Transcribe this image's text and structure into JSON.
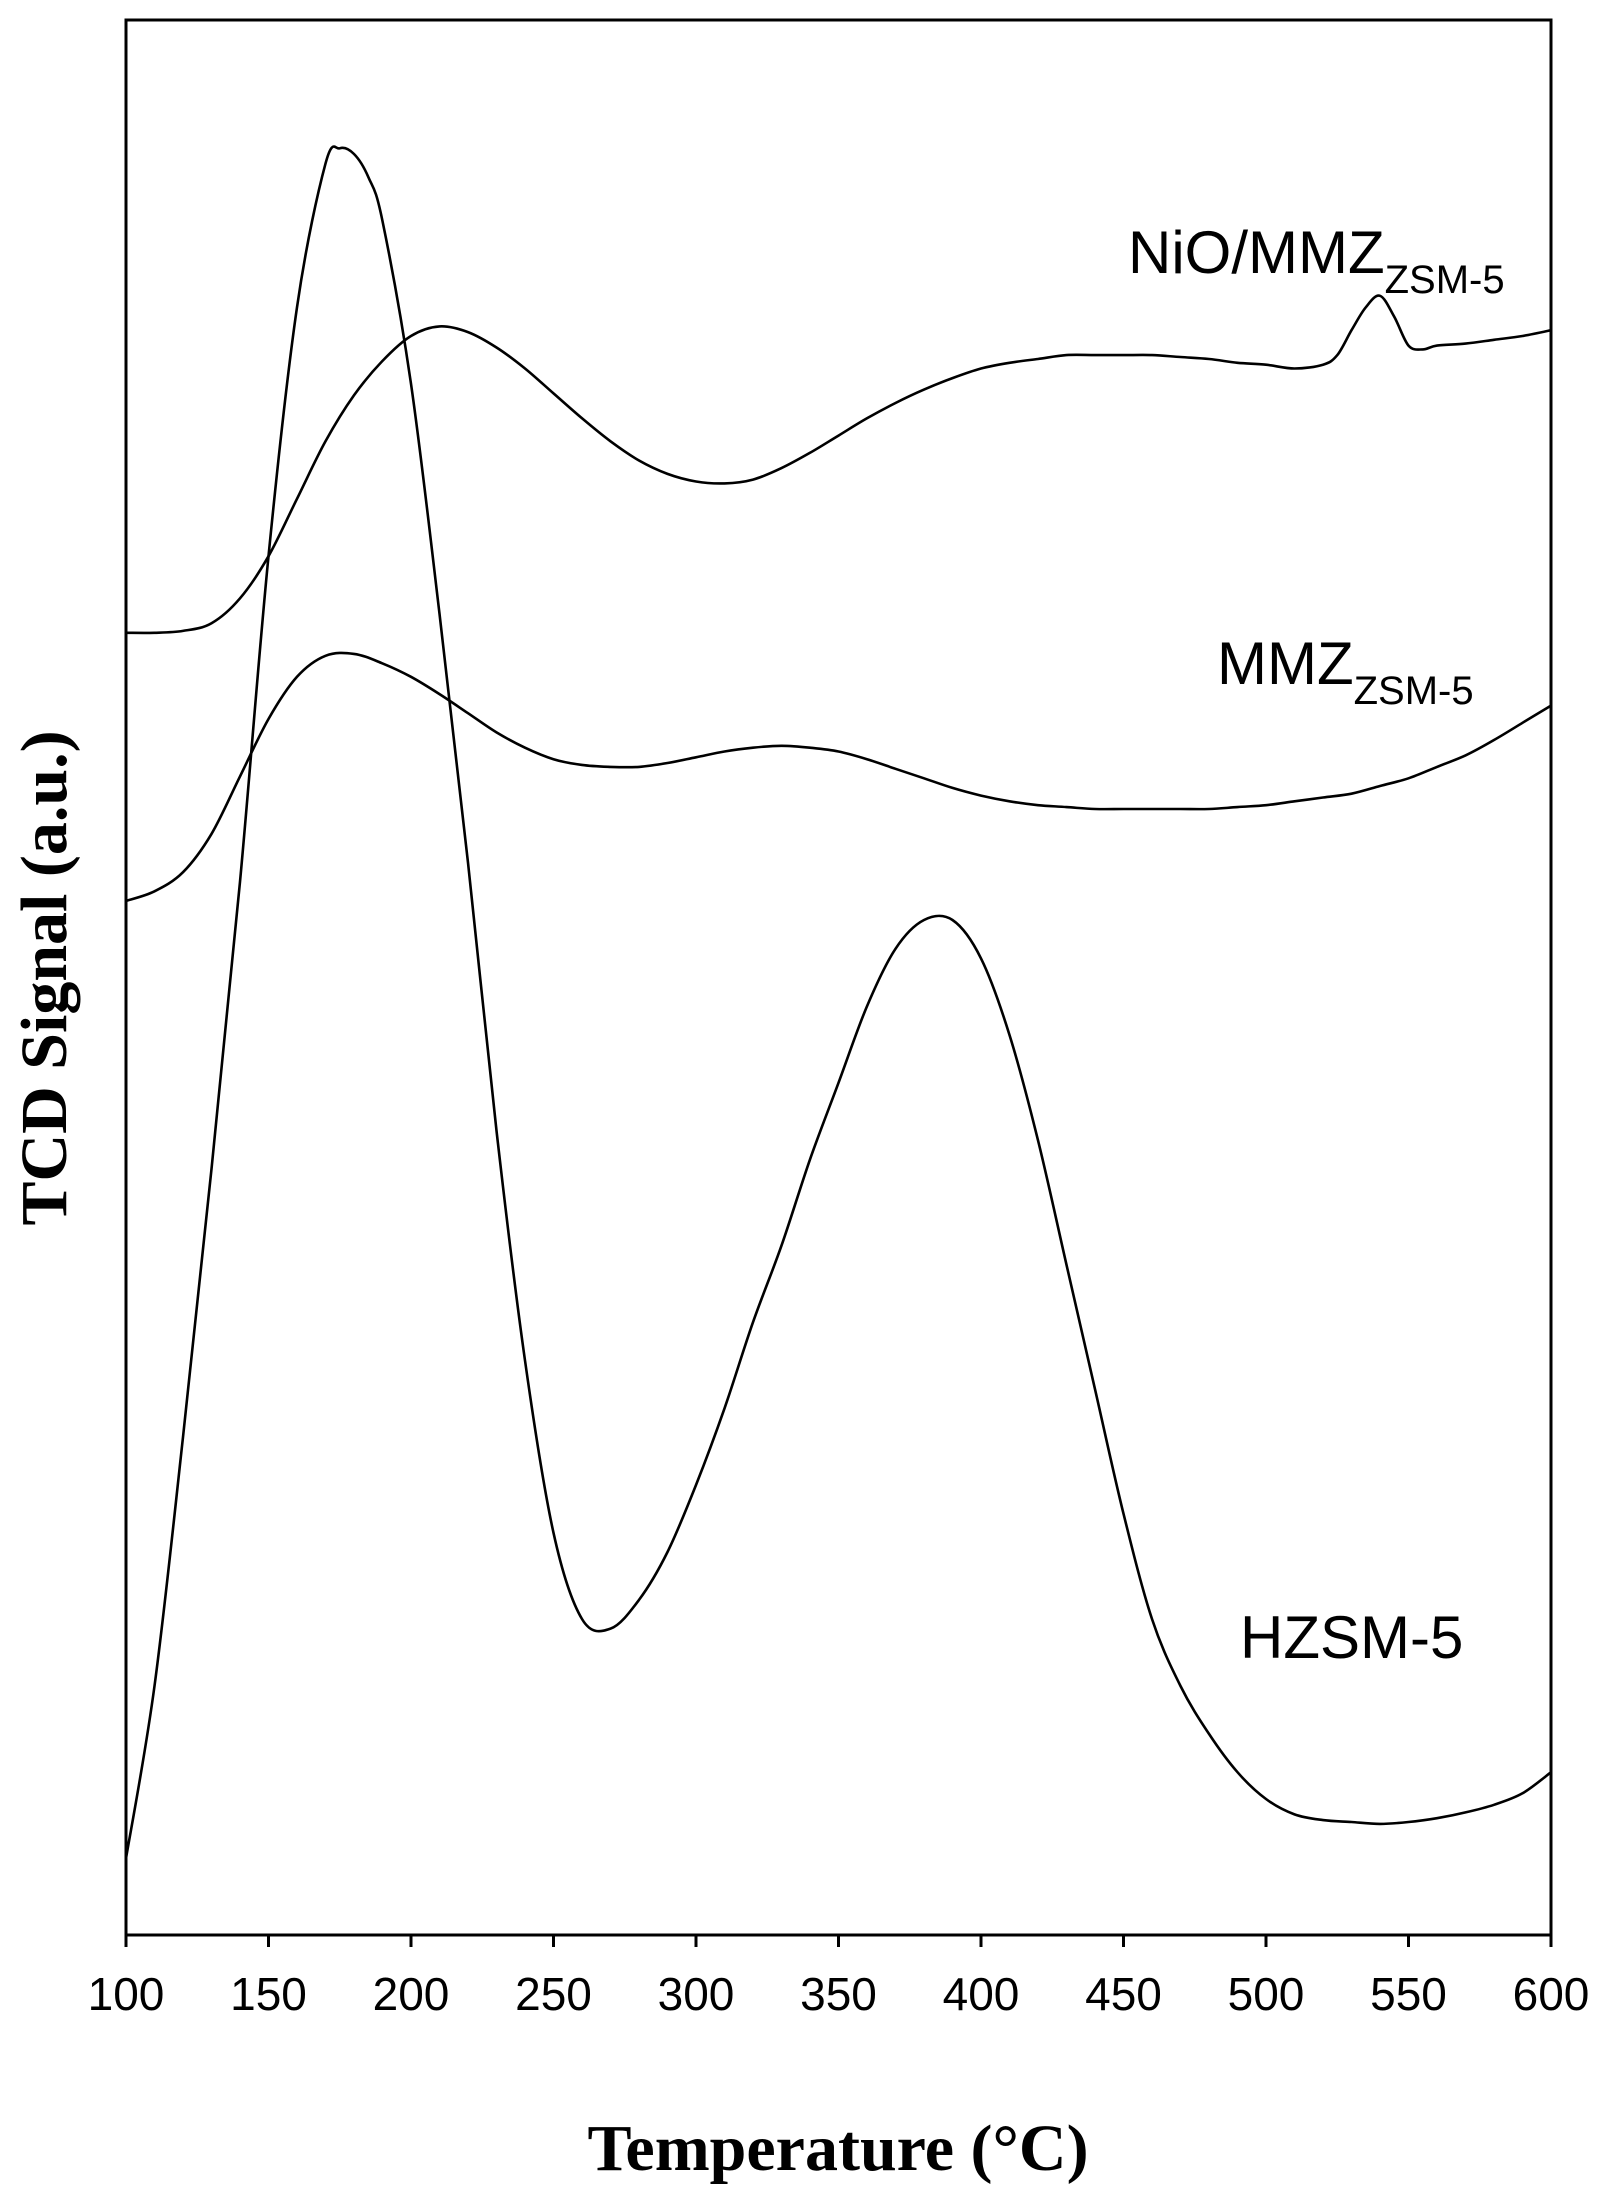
{
  "chart_data": {
    "type": "line",
    "xlabel": "Temperature (°C)",
    "ylabel": "TCD Signal (a.u.)",
    "xlim": [
      100,
      600
    ],
    "ylim": [
      0,
      100
    ],
    "x_ticks": [
      "100",
      "150",
      "200",
      "250",
      "300",
      "350",
      "400",
      "450",
      "500",
      "550",
      "600"
    ],
    "y_ticks_shown": false,
    "grid": false,
    "colors": {
      "line": "#000000",
      "axis": "#000000",
      "background": "#ffffff"
    },
    "series": [
      {
        "name": "NiO/MMZ",
        "label_main": "NiO/MMZ",
        "label_sub": "ZSM-5",
        "x": [
          100,
          110,
          120,
          130,
          140,
          150,
          160,
          170,
          180,
          190,
          200,
          210,
          220,
          230,
          240,
          250,
          260,
          270,
          280,
          290,
          300,
          310,
          320,
          330,
          340,
          350,
          360,
          370,
          380,
          390,
          400,
          410,
          420,
          430,
          440,
          450,
          460,
          470,
          480,
          490,
          500,
          510,
          520,
          525,
          530,
          535,
          540,
          545,
          550,
          555,
          560,
          570,
          580,
          590,
          600
        ],
        "y": [
          68.0,
          68.0,
          68.1,
          68.5,
          69.8,
          72.0,
          75.0,
          78.0,
          80.4,
          82.2,
          83.5,
          84.0,
          83.7,
          82.9,
          81.8,
          80.5,
          79.2,
          78.0,
          77.0,
          76.3,
          75.9,
          75.8,
          76.0,
          76.6,
          77.4,
          78.3,
          79.2,
          80.0,
          80.7,
          81.3,
          81.8,
          82.1,
          82.3,
          82.5,
          82.5,
          82.5,
          82.5,
          82.4,
          82.3,
          82.1,
          82.0,
          81.8,
          82.0,
          82.5,
          83.8,
          85.0,
          85.6,
          84.5,
          83.0,
          82.8,
          83.0,
          83.1,
          83.3,
          83.5,
          83.8
        ]
      },
      {
        "name": "MMZ",
        "label_main": "MMZ",
        "label_sub": "ZSM-5",
        "x": [
          100,
          110,
          120,
          130,
          140,
          150,
          160,
          170,
          180,
          190,
          200,
          210,
          220,
          230,
          240,
          250,
          260,
          270,
          280,
          290,
          300,
          310,
          320,
          330,
          340,
          350,
          360,
          370,
          380,
          390,
          400,
          410,
          420,
          430,
          440,
          450,
          460,
          470,
          480,
          490,
          500,
          510,
          520,
          530,
          540,
          550,
          560,
          570,
          580,
          590,
          600
        ],
        "y": [
          54.0,
          54.5,
          55.5,
          57.5,
          60.5,
          63.5,
          65.7,
          66.8,
          66.9,
          66.4,
          65.7,
          64.8,
          63.8,
          62.8,
          62.0,
          61.4,
          61.1,
          61.0,
          61.0,
          61.2,
          61.5,
          61.8,
          62.0,
          62.1,
          62.0,
          61.8,
          61.4,
          60.9,
          60.4,
          59.9,
          59.5,
          59.2,
          59.0,
          58.9,
          58.8,
          58.8,
          58.8,
          58.8,
          58.8,
          58.9,
          59.0,
          59.2,
          59.4,
          59.6,
          60.0,
          60.4,
          61.0,
          61.6,
          62.4,
          63.3,
          64.2
        ]
      },
      {
        "name": "HZSM-5",
        "label_main": "HZSM-5",
        "label_sub": "",
        "x": [
          100,
          110,
          120,
          130,
          140,
          150,
          160,
          170,
          175,
          180,
          185,
          190,
          200,
          210,
          220,
          230,
          240,
          250,
          260,
          270,
          280,
          290,
          300,
          310,
          320,
          330,
          340,
          350,
          360,
          370,
          380,
          390,
          400,
          410,
          420,
          430,
          440,
          450,
          460,
          470,
          480,
          490,
          500,
          510,
          520,
          530,
          540,
          550,
          560,
          570,
          580,
          590,
          600
        ],
        "y": [
          4.0,
          13.0,
          26.0,
          40.0,
          55.0,
          72.0,
          85.0,
          92.5,
          93.3,
          93.0,
          91.8,
          89.5,
          81.0,
          69.0,
          56.0,
          42.0,
          30.0,
          21.0,
          16.5,
          16.0,
          17.5,
          20.0,
          23.5,
          27.5,
          32.0,
          36.0,
          40.5,
          44.5,
          48.5,
          51.5,
          53.0,
          53.0,
          51.0,
          47.0,
          41.5,
          35.0,
          28.5,
          22.0,
          16.5,
          13.0,
          10.5,
          8.5,
          7.1,
          6.3,
          6.0,
          5.9,
          5.8,
          5.9,
          6.1,
          6.4,
          6.8,
          7.4,
          8.5
        ]
      }
    ]
  }
}
